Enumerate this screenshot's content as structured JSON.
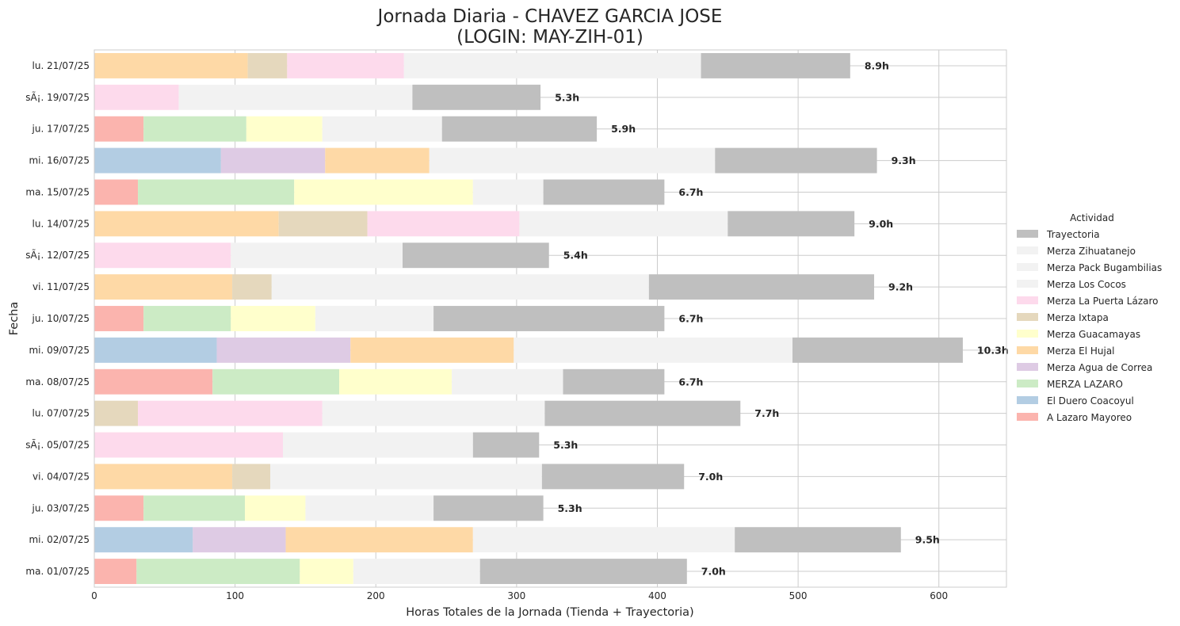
{
  "chart_data": {
    "type": "bar",
    "orientation": "horizontal",
    "stacked": true,
    "title": "Jornada Diaria - CHAVEZ GARCIA JOSE",
    "subtitle": "(LOGIN: MAY-ZIH-01)",
    "xlabel": "Horas Totales de la Jornada (Tienda + Trayectoria)",
    "ylabel": "Fecha",
    "xlim": [
      0,
      648
    ],
    "xticks": [
      0,
      100,
      200,
      300,
      400,
      500,
      600
    ],
    "grid": true,
    "legend": {
      "title": "Actividad",
      "placement": "center-right"
    },
    "categories": [
      "ma. 01/07/25",
      "mi. 02/07/25",
      "ju. 03/07/25",
      "vi. 04/07/25",
      "sÃ¡. 05/07/25",
      "lu. 07/07/25",
      "ma. 08/07/25",
      "mi. 09/07/25",
      "ju. 10/07/25",
      "vi. 11/07/25",
      "sÃ¡. 12/07/25",
      "lu. 14/07/25",
      "ma. 15/07/25",
      "mi. 16/07/25",
      "ju. 17/07/25",
      "sÃ¡. 19/07/25",
      "lu. 21/07/25"
    ],
    "series": [
      {
        "name": "A Lazaro Mayoreo",
        "color": "#fbb4ae",
        "values": [
          30,
          0,
          35,
          0,
          0,
          0,
          84,
          0,
          35,
          0,
          0,
          0,
          31,
          0,
          35,
          0,
          0
        ]
      },
      {
        "name": "El Duero Coacoyul",
        "color": "#b3cde3",
        "values": [
          0,
          70,
          0,
          0,
          0,
          0,
          0,
          87,
          0,
          0,
          0,
          0,
          0,
          90,
          0,
          0,
          0
        ]
      },
      {
        "name": "MERZA LAZARO",
        "color": "#ccebc5",
        "values": [
          116,
          0,
          72,
          0,
          0,
          0,
          90,
          0,
          62,
          0,
          0,
          0,
          111,
          0,
          73,
          0,
          0
        ]
      },
      {
        "name": "Merza Agua de Correa",
        "color": "#decbe4",
        "values": [
          0,
          66,
          0,
          0,
          0,
          0,
          0,
          95,
          0,
          0,
          0,
          0,
          0,
          74,
          0,
          0,
          0
        ]
      },
      {
        "name": "Merza El Hujal",
        "color": "#fed9a6",
        "values": [
          0,
          133,
          0,
          98,
          0,
          0,
          0,
          116,
          0,
          98,
          0,
          131,
          0,
          74,
          0,
          0,
          109
        ]
      },
      {
        "name": "Merza Guacamayas",
        "color": "#ffffcc",
        "values": [
          38,
          0,
          43,
          0,
          0,
          0,
          80,
          0,
          60,
          0,
          0,
          0,
          127,
          0,
          54,
          0,
          0
        ]
      },
      {
        "name": "Merza Ixtapa",
        "color": "#e5d8bd",
        "values": [
          0,
          0,
          0,
          27,
          0,
          31,
          0,
          0,
          0,
          28,
          0,
          63,
          0,
          0,
          0,
          0,
          28
        ]
      },
      {
        "name": "Merza La Puerta Lázaro",
        "color": "#fddaec",
        "values": [
          0,
          0,
          0,
          0,
          134,
          131,
          0,
          0,
          0,
          0,
          97,
          108,
          0,
          0,
          0,
          60,
          83
        ]
      },
      {
        "name": "Merza Los Cocos",
        "color": "#f2f2f2",
        "values": [
          90,
          186,
          91,
          193,
          135,
          158,
          79,
          198,
          84,
          268,
          122,
          148,
          50,
          203,
          85,
          166,
          211
        ]
      },
      {
        "name": "Merza Pack Bugambilias",
        "color": "#f2f2f2",
        "values": [
          0,
          0,
          0,
          0,
          0,
          0,
          0,
          0,
          0,
          0,
          0,
          0,
          0,
          0,
          0,
          0,
          0
        ]
      },
      {
        "name": "Merza Zihuatanejo",
        "color": "#f2f2f2",
        "values": [
          0,
          0,
          0,
          0,
          0,
          0,
          0,
          0,
          0,
          0,
          0,
          0,
          0,
          0,
          0,
          0,
          0
        ]
      },
      {
        "name": "Trayectoria",
        "color": "#bfbfbf",
        "values": [
          147,
          118,
          78,
          101,
          47,
          139,
          72,
          121,
          164,
          160,
          104,
          90,
          86,
          115,
          110,
          91,
          106
        ]
      }
    ],
    "totals_labels": [
      "7.0h",
      "9.5h",
      "5.3h",
      "7.0h",
      "5.3h",
      "7.7h",
      "6.7h",
      "10.3h",
      "6.7h",
      "9.2h",
      "5.4h",
      "9.0h",
      "6.7h",
      "9.3h",
      "5.9h",
      "5.3h",
      "8.9h"
    ],
    "legend_order": [
      "Trayectoria",
      "Merza Zihuatanejo",
      "Merza Pack Bugambilias",
      "Merza Los Cocos",
      "Merza La Puerta Lázaro",
      "Merza Ixtapa",
      "Merza Guacamayas",
      "Merza El Hujal",
      "Merza Agua de Correa",
      "MERZA LAZARO",
      "El Duero Coacoyul",
      "A Lazaro Mayoreo"
    ]
  }
}
